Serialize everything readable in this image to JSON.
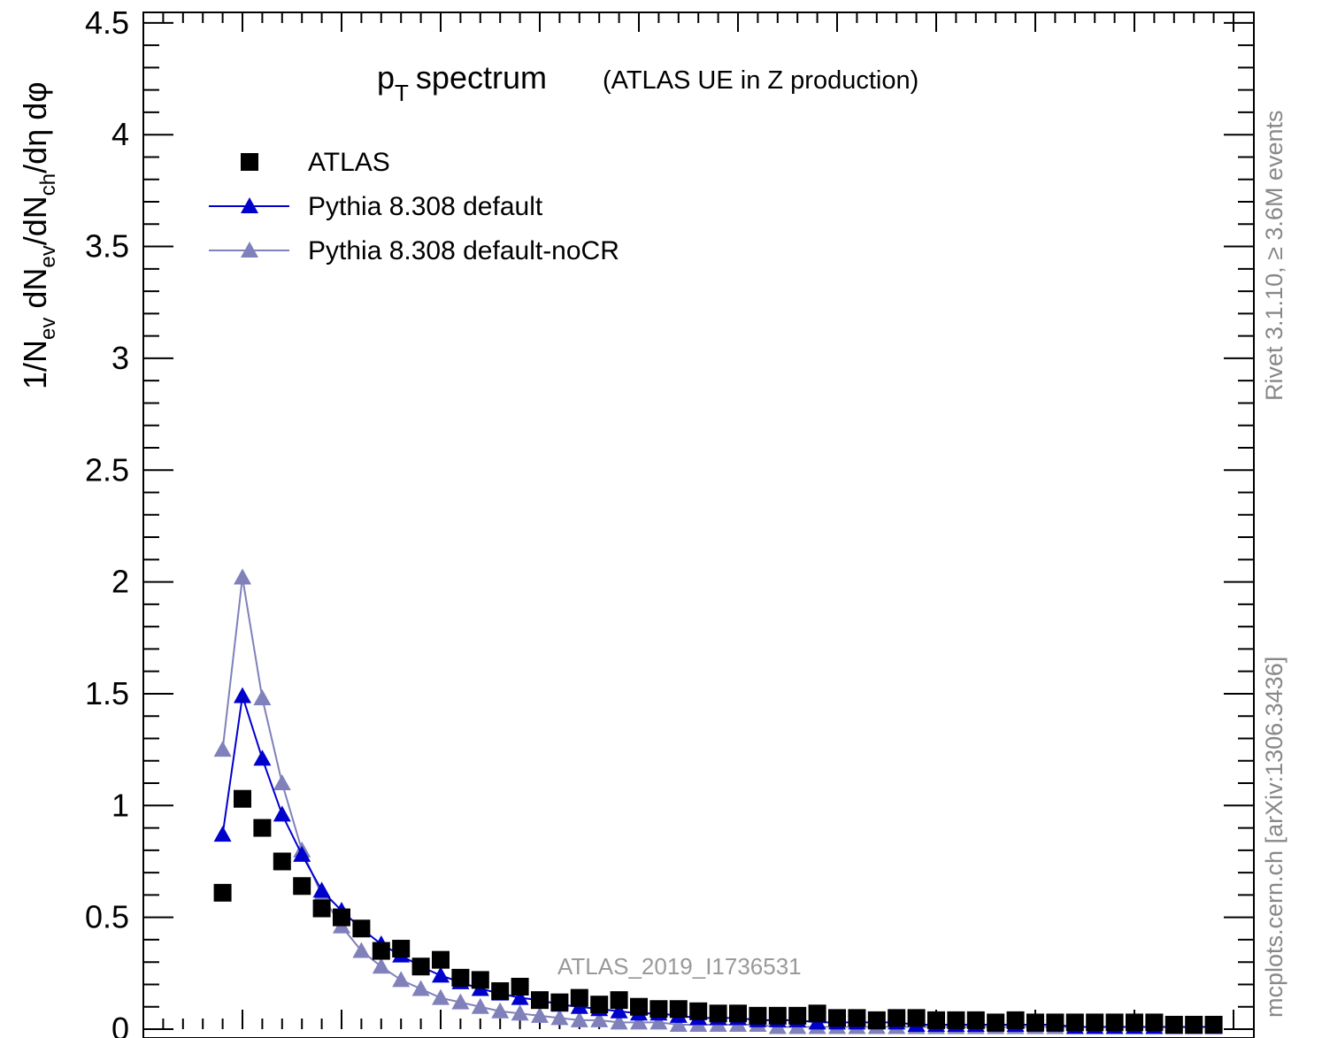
{
  "chart_data": {
    "type": "scatter",
    "title": "p",
    "title_sub": "T",
    "title_rest": "spectrum",
    "subtitle": "(ATLAS UE in Z production)",
    "ylabel": "1/N_ev dN_ev/dN_ch/dη dφ",
    "ylim": [
      0,
      4.5
    ],
    "xlim": [
      0,
      55
    ],
    "yticks": [
      "0",
      "0.5",
      "1",
      "1.5",
      "2",
      "2.5",
      "3",
      "3.5",
      "4",
      "4.5"
    ],
    "yticks_values": [
      0,
      0.5,
      1,
      1.5,
      2,
      2.5,
      3,
      3.5,
      4,
      4.5
    ],
    "watermark": "ATLAS_2019_I1736531",
    "side_text_top": "Rivet 3.1.10, ≥ 3.6M events",
    "side_text_bottom": "mcplots.cern.ch [arXiv:1306.3436]",
    "legend_position": "top-left",
    "x": [
      4,
      5,
      6,
      7,
      8,
      9,
      10,
      11,
      12,
      13,
      14,
      15,
      16,
      17,
      18,
      19,
      20,
      21,
      22,
      23,
      24,
      25,
      26,
      27,
      28,
      29,
      30,
      31,
      32,
      33,
      34,
      35,
      36,
      37,
      38,
      39,
      40,
      41,
      42,
      43,
      44,
      45,
      46,
      47,
      48,
      49,
      50,
      51,
      52,
      53,
      54
    ],
    "series": [
      {
        "name": "ATLAS",
        "color": "#000000",
        "marker": "square",
        "values": [
          0.61,
          1.03,
          0.9,
          0.75,
          0.64,
          0.54,
          0.5,
          0.45,
          0.35,
          0.36,
          0.28,
          0.31,
          0.23,
          0.22,
          0.17,
          0.19,
          0.13,
          0.12,
          0.14,
          0.11,
          0.13,
          0.1,
          0.09,
          0.09,
          0.08,
          0.07,
          0.07,
          0.06,
          0.06,
          0.06,
          0.07,
          0.05,
          0.05,
          0.04,
          0.05,
          0.05,
          0.04,
          0.04,
          0.04,
          0.03,
          0.04,
          0.03,
          0.03,
          0.03,
          0.03,
          0.03,
          0.03,
          0.03,
          0.02,
          0.02,
          0.02
        ]
      },
      {
        "name": "Pythia 8.308 default",
        "color": "#0000cc",
        "marker": "triangle",
        "values": [
          0.87,
          1.49,
          1.21,
          0.96,
          0.78,
          0.62,
          0.53,
          0.45,
          0.38,
          0.33,
          0.28,
          0.24,
          0.21,
          0.18,
          0.16,
          0.14,
          0.13,
          0.11,
          0.1,
          0.09,
          0.08,
          0.07,
          0.07,
          0.06,
          0.05,
          0.05,
          0.05,
          0.04,
          0.04,
          0.04,
          0.03,
          0.03,
          0.03,
          0.03,
          0.03,
          0.02,
          0.02,
          0.02,
          0.02,
          0.02,
          0.02,
          0.02,
          0.02,
          0.01,
          0.01,
          0.01,
          0.01,
          0.01,
          0.01,
          0.01,
          0.01
        ]
      },
      {
        "name": "Pythia 8.308 default-noCR",
        "color": "#8080bb",
        "marker": "triangle",
        "values": [
          1.25,
          2.02,
          1.48,
          1.1,
          0.8,
          0.6,
          0.46,
          0.35,
          0.28,
          0.22,
          0.18,
          0.14,
          0.12,
          0.1,
          0.08,
          0.07,
          0.06,
          0.05,
          0.04,
          0.04,
          0.03,
          0.03,
          0.03,
          0.02,
          0.02,
          0.02,
          0.02,
          0.02,
          0.01,
          0.01,
          0.01,
          0.01,
          0.01,
          0.01,
          0.01,
          0.01,
          0.01,
          0.01,
          0.01,
          0.01,
          0.01,
          0.01,
          0.01,
          0.01,
          0.01,
          0.01,
          0.01,
          0.01,
          0.01,
          0.01,
          0.01
        ]
      }
    ]
  }
}
